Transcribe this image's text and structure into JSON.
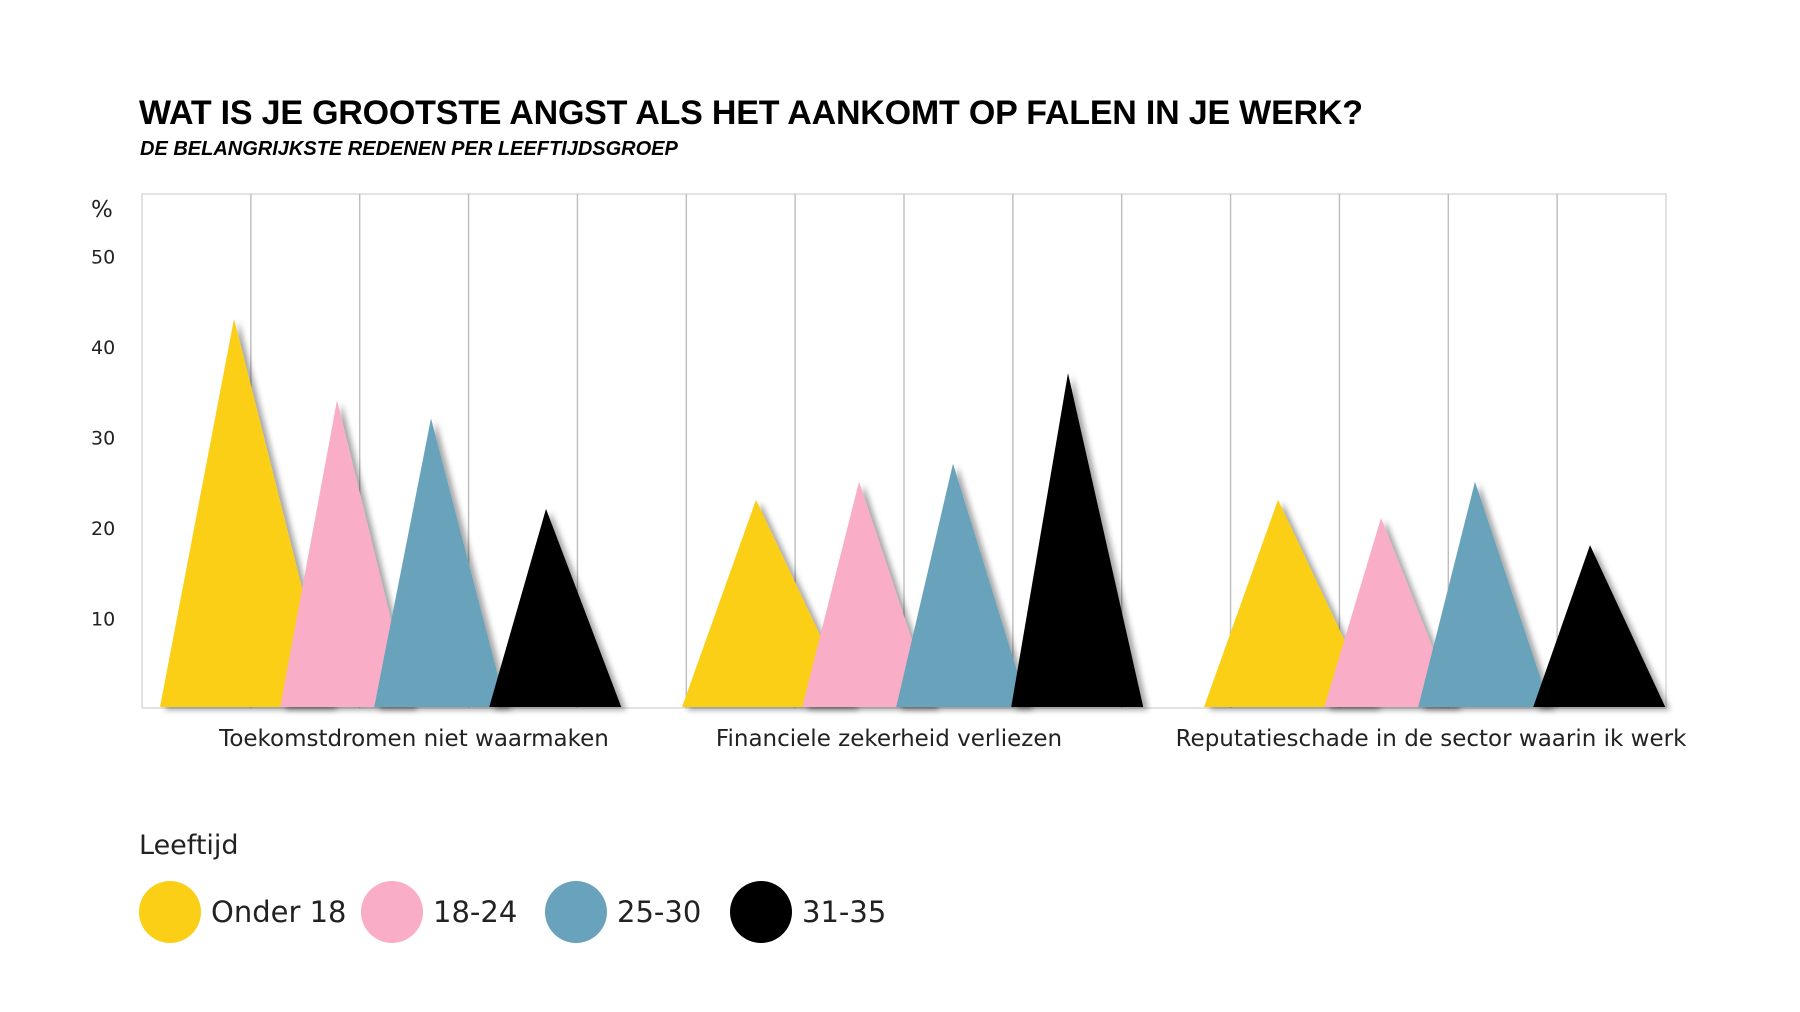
{
  "title": "WAT IS JE GROOTSTE ANGST ALS HET AANKOMT OP FALEN IN JE WERK?",
  "subtitle": "DE BELANGRIJKSTE REDENEN PER LEEFTIJDSGROEP",
  "legend": {
    "title": "Leeftijd",
    "items": [
      {
        "label": "Onder 18",
        "color": "#FBCF16"
      },
      {
        "label": "18-24",
        "color": "#F9ADC6"
      },
      {
        "label": "25-30",
        "color": "#68A3BB"
      },
      {
        "label": "31-35",
        "color": "#000000"
      }
    ]
  },
  "chart_data": {
    "type": "bar",
    "style": "triangle",
    "title": "WAT IS JE GROOTSTE ANGST ALS HET AANKOMT OP FALEN IN JE WERK?",
    "subtitle": "DE BELANGRIJKSTE REDENEN PER LEEFTIJDSGROEP",
    "ylabel": "%",
    "yticks": [
      10,
      20,
      30,
      40,
      50
    ],
    "ytick_labels": [
      "10",
      "20",
      "30",
      "40",
      "50"
    ],
    "ylim": [
      0,
      55
    ],
    "categories": [
      "Toekomstdromen niet waarmaken",
      "Financiele zekerheid verliezen",
      "Reputatieschade in de sector waarin ik werk"
    ],
    "series": [
      {
        "name": "Onder 18",
        "color": "#FBCF16",
        "values": [
          43,
          23,
          23
        ]
      },
      {
        "name": "18-24",
        "color": "#F9ADC6",
        "values": [
          34,
          25,
          21
        ]
      },
      {
        "name": "25-30",
        "color": "#68A3BB",
        "values": [
          32,
          27,
          25
        ]
      },
      {
        "name": "31-35",
        "color": "#000000",
        "values": [
          22,
          37,
          18
        ]
      }
    ],
    "grid": true,
    "legend_position": "bottom-left"
  }
}
